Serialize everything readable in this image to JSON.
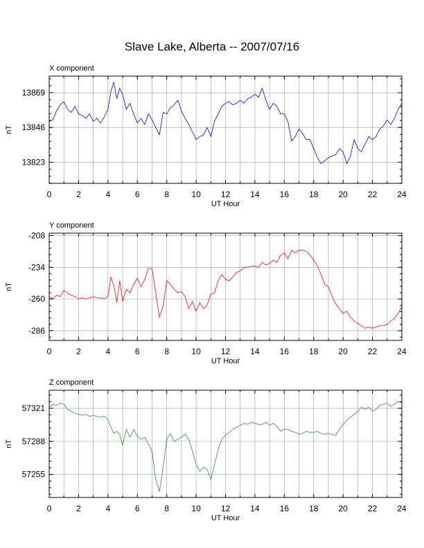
{
  "title": "Slave Lake, Alberta -- 2007/07/16",
  "chart_data": [
    {
      "type": "line",
      "title": "X component",
      "xlabel": "UT Hour",
      "ylabel": "nT",
      "xlim": [
        0,
        24
      ],
      "ylim": [
        13809,
        13880
      ],
      "x_ticks": [
        0,
        2,
        4,
        6,
        8,
        10,
        12,
        14,
        16,
        18,
        20,
        22,
        24
      ],
      "y_ticks": [
        13823,
        13846,
        13869
      ],
      "grid": true,
      "color": "#0000ff",
      "series": [
        {
          "x": [
            0,
            0.25,
            0.5,
            0.75,
            1,
            1.25,
            1.5,
            1.75,
            2,
            2.25,
            2.5,
            2.75,
            3,
            3.25,
            3.5,
            3.75,
            4,
            4.2,
            4.4,
            4.6,
            4.8,
            5,
            5.25,
            5.5,
            5.75,
            6,
            6.25,
            6.5,
            6.75,
            7,
            7.25,
            7.5,
            7.75,
            8,
            8.25,
            8.5,
            8.75,
            9,
            9.25,
            9.5,
            9.75,
            10,
            10.25,
            10.5,
            10.75,
            11,
            11.25,
            11.5,
            11.75,
            12,
            12.25,
            12.5,
            12.75,
            13,
            13.25,
            13.5,
            13.75,
            14,
            14.25,
            14.5,
            14.75,
            15,
            15.25,
            15.5,
            15.75,
            16,
            16.25,
            16.5,
            16.75,
            17,
            17.25,
            17.5,
            17.75,
            18,
            18.25,
            18.5,
            18.75,
            19,
            19.25,
            19.5,
            19.75,
            20,
            20.25,
            20.5,
            20.75,
            21,
            21.25,
            21.5,
            21.75,
            22,
            22.25,
            22.5,
            22.75,
            23,
            23.25,
            23.5,
            23.75,
            24
          ],
          "y": [
            13850,
            13851,
            13857,
            13861,
            13863,
            13858,
            13856,
            13860,
            13855,
            13854,
            13852,
            13855,
            13850,
            13852,
            13849,
            13853,
            13858,
            13870,
            13876,
            13865,
            13872,
            13868,
            13858,
            13862,
            13855,
            13849,
            13852,
            13848,
            13855,
            13851,
            13846,
            13841,
            13856,
            13855,
            13859,
            13861,
            13864,
            13857,
            13852,
            13848,
            13843,
            13838,
            13840,
            13841,
            13846,
            13840,
            13850,
            13855,
            13860,
            13862,
            13863,
            13861,
            13862,
            13864,
            13862,
            13865,
            13866,
            13868,
            13866,
            13872,
            13864,
            13858,
            13862,
            13860,
            13855,
            13855,
            13850,
            13837,
            13840,
            13845,
            13842,
            13838,
            13838,
            13832,
            13826,
            13822,
            13824,
            13826,
            13827,
            13828,
            13832,
            13830,
            13822,
            13827,
            13838,
            13832,
            13830,
            13835,
            13840,
            13838,
            13840,
            13845,
            13847,
            13851,
            13848,
            13852,
            13858,
            13862
          ]
        }
      ]
    },
    {
      "type": "line",
      "title": "Y component",
      "xlabel": "UT Hour",
      "ylabel": "nT",
      "xlim": [
        0,
        24
      ],
      "ylim": [
        -294,
        -206
      ],
      "x_ticks": [
        0,
        2,
        4,
        6,
        8,
        10,
        12,
        14,
        16,
        18,
        20,
        22,
        24
      ],
      "y_ticks": [
        -208,
        -234,
        -260,
        -286
      ],
      "grid": true,
      "color": "#ff0000",
      "series": [
        {
          "x": [
            0,
            0.25,
            0.5,
            0.75,
            1,
            1.25,
            1.5,
            1.75,
            2,
            2.25,
            2.5,
            2.75,
            3,
            3.25,
            3.5,
            3.75,
            4,
            4.2,
            4.4,
            4.6,
            4.8,
            5,
            5.25,
            5.5,
            5.75,
            6,
            6.25,
            6.5,
            6.75,
            7,
            7.25,
            7.5,
            7.75,
            8,
            8.25,
            8.5,
            8.75,
            9,
            9.25,
            9.5,
            9.75,
            10,
            10.25,
            10.5,
            10.75,
            11,
            11.25,
            11.5,
            11.75,
            12,
            12.25,
            12.5,
            12.75,
            13,
            13.25,
            13.5,
            13.75,
            14,
            14.25,
            14.5,
            14.75,
            15,
            15.25,
            15.5,
            15.75,
            16,
            16.25,
            16.5,
            16.75,
            17,
            17.25,
            17.5,
            17.75,
            18,
            18.25,
            18.5,
            18.75,
            19,
            19.25,
            19.5,
            19.75,
            20,
            20.25,
            20.5,
            20.75,
            21,
            21.25,
            21.5,
            21.75,
            22,
            22.25,
            22.5,
            22.75,
            23,
            23.25,
            23.5,
            23.75,
            24
          ],
          "y": [
            -258,
            -260,
            -257,
            -258,
            -253,
            -255,
            -257,
            -258,
            -260,
            -259,
            -260,
            -259,
            -258,
            -259,
            -259,
            -260,
            -258,
            -242,
            -249,
            -263,
            -245,
            -262,
            -252,
            -255,
            -248,
            -243,
            -250,
            -244,
            -235,
            -235,
            -255,
            -275,
            -266,
            -245,
            -248,
            -252,
            -255,
            -254,
            -258,
            -268,
            -262,
            -270,
            -263,
            -268,
            -265,
            -256,
            -255,
            -245,
            -240,
            -244,
            -245,
            -242,
            -238,
            -237,
            -234,
            -234,
            -233,
            -233,
            -234,
            -230,
            -232,
            -231,
            -228,
            -230,
            -224,
            -222,
            -227,
            -220,
            -222,
            -220,
            -220,
            -221,
            -224,
            -228,
            -233,
            -240,
            -248,
            -250,
            -258,
            -264,
            -268,
            -272,
            -270,
            -275,
            -278,
            -280,
            -282,
            -284,
            -283,
            -284,
            -283,
            -282,
            -282,
            -281,
            -278,
            -276,
            -272,
            -266
          ]
        }
      ]
    },
    {
      "type": "line",
      "title": "Z component",
      "xlabel": "UT Hour",
      "ylabel": "nT",
      "xlim": [
        0,
        24
      ],
      "ylim": [
        57232,
        57339
      ],
      "x_ticks": [
        0,
        2,
        4,
        6,
        8,
        10,
        12,
        14,
        16,
        18,
        20,
        22,
        24
      ],
      "y_ticks": [
        57321,
        57288,
        57255
      ],
      "grid": true,
      "color": "#2e8b57",
      "series": [
        {
          "x": [
            0,
            0.25,
            0.5,
            0.75,
            1,
            1.25,
            1.5,
            1.75,
            2,
            2.25,
            2.5,
            2.75,
            3,
            3.25,
            3.5,
            3.75,
            4,
            4.2,
            4.4,
            4.6,
            4.8,
            5,
            5.25,
            5.5,
            5.75,
            6,
            6.25,
            6.5,
            6.75,
            7,
            7.25,
            7.5,
            7.75,
            8,
            8.25,
            8.5,
            8.75,
            9,
            9.25,
            9.5,
            9.75,
            10,
            10.25,
            10.5,
            10.75,
            11,
            11.25,
            11.5,
            11.75,
            12,
            12.25,
            12.5,
            12.75,
            13,
            13.25,
            13.5,
            13.75,
            14,
            14.25,
            14.5,
            14.75,
            15,
            15.25,
            15.5,
            15.75,
            16,
            16.25,
            16.5,
            16.75,
            17,
            17.25,
            17.5,
            17.75,
            18,
            18.25,
            18.5,
            18.75,
            19,
            19.25,
            19.5,
            19.75,
            20,
            20.25,
            20.5,
            20.75,
            21,
            21.25,
            21.5,
            21.75,
            22,
            22.25,
            22.5,
            22.75,
            23,
            23.25,
            23.5,
            23.75,
            24
          ],
          "y": [
            57322,
            57325,
            57324,
            57326,
            57325,
            57320,
            57318,
            57316,
            57315,
            57314,
            57315,
            57313,
            57314,
            57313,
            57312,
            57313,
            57310,
            57302,
            57296,
            57298,
            57295,
            57284,
            57300,
            57292,
            57300,
            57293,
            57290,
            57292,
            57285,
            57278,
            57250,
            57238,
            57262,
            57290,
            57296,
            57288,
            57290,
            57292,
            57295,
            57290,
            57278,
            57265,
            57258,
            57262,
            57260,
            57250,
            57265,
            57280,
            57290,
            57294,
            57297,
            57300,
            57302,
            57304,
            57306,
            57305,
            57307,
            57306,
            57305,
            57305,
            57307,
            57304,
            57306,
            57303,
            57298,
            57300,
            57300,
            57298,
            57297,
            57295,
            57296,
            57298,
            57297,
            57297,
            57298,
            57296,
            57295,
            57296,
            57295,
            57294,
            57300,
            57305,
            57309,
            57312,
            57315,
            57318,
            57322,
            57320,
            57322,
            57318,
            57320,
            57324,
            57325,
            57326,
            57323,
            57325,
            57328,
            57326
          ]
        }
      ]
    }
  ]
}
